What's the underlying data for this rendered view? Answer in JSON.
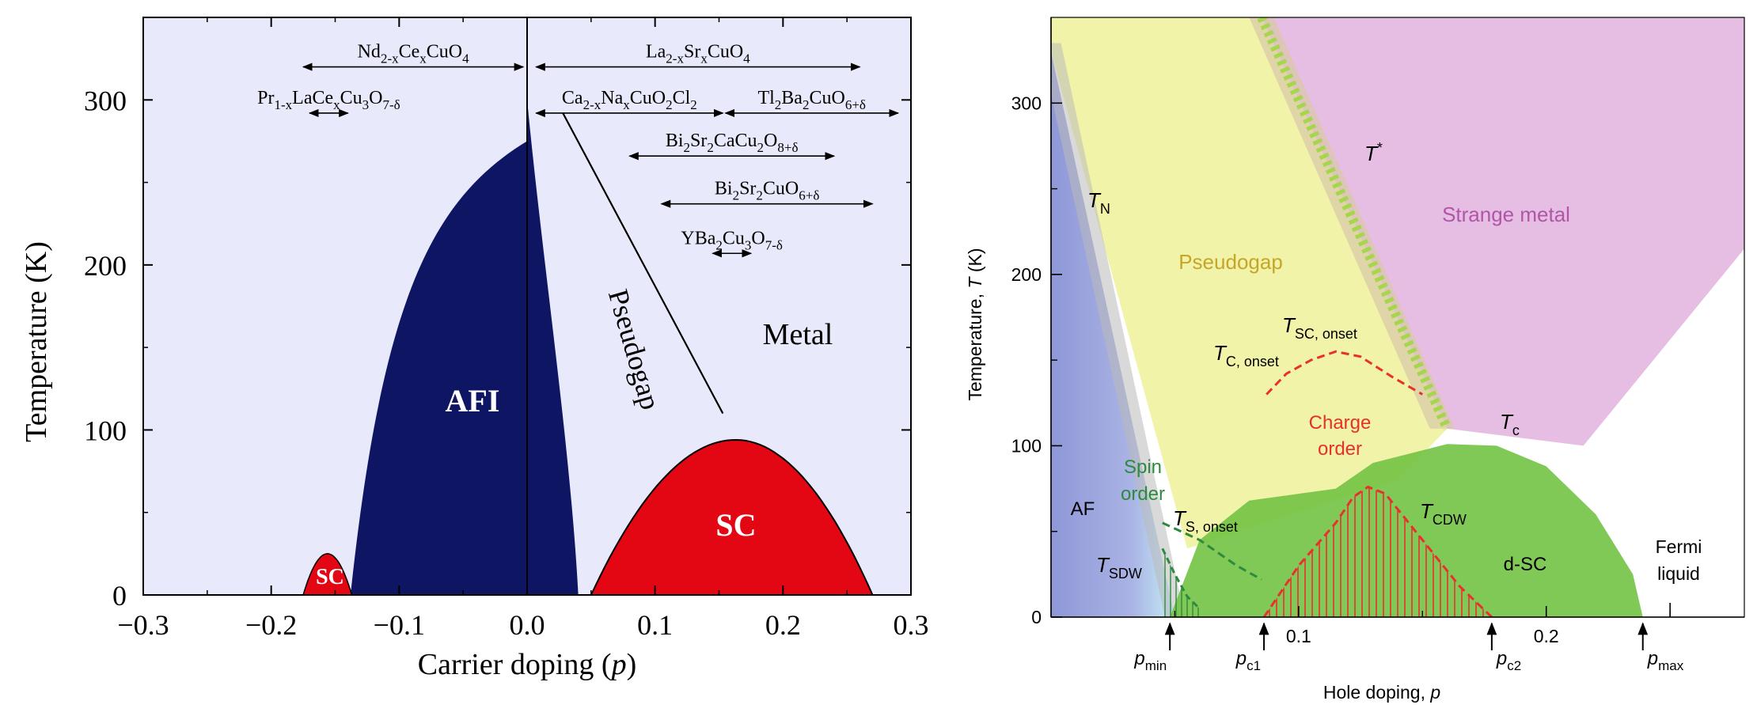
{
  "chart_data": [
    {
      "type": "area",
      "ylabel": "Temperature  (K)",
      "xlabel_main": "Carrier doping  (",
      "xlabel_var": "p",
      "xlabel_close": ")",
      "xlim": [
        -0.3,
        0.3
      ],
      "ylim": [
        0,
        350
      ],
      "x_ticks": [
        "−0.3",
        "−0.2",
        "−0.1",
        "0.0",
        "0.1",
        "0.2",
        "0.3"
      ],
      "x_tick_values": [
        -0.3,
        -0.2,
        -0.1,
        0.0,
        0.1,
        0.2,
        0.3
      ],
      "y_ticks": [
        "0",
        "100",
        "200",
        "300"
      ],
      "y_tick_values": [
        0,
        100,
        200,
        300
      ],
      "colors": {
        "background": "#e8e9fb",
        "afi": "#0e1563",
        "sc": "#e30613"
      },
      "regions": {
        "afi": {
          "label": "AFI",
          "p_left": -0.138,
          "p_right": 0.04,
          "tn_max": 275
        },
        "sc_electron": {
          "label": "SC",
          "p_range": [
            -0.175,
            -0.137
          ],
          "tc_max": 25
        },
        "sc_hole": {
          "label": "SC",
          "p_range": [
            0.05,
            0.27
          ],
          "tc_max": 94,
          "p_opt": 0.163
        },
        "pseudogap": {
          "label": "Pseudogap",
          "line": [
            [
              0.028,
              292
            ],
            [
              0.153,
              110
            ]
          ]
        },
        "metal": {
          "label": "Metal"
        }
      },
      "compounds": [
        {
          "main": "Nd",
          "parts": [
            [
              "2-x",
              "sub"
            ],
            [
              "Ce",
              ""
            ],
            [
              "x",
              "sub"
            ],
            [
              "CuO",
              ""
            ],
            [
              "4",
              "sub"
            ]
          ],
          "range": [
            -0.175,
            -0.003
          ],
          "t": 320
        },
        {
          "main": "Pr",
          "parts": [
            [
              "1-x",
              "sub"
            ],
            [
              "LaCe",
              ""
            ],
            [
              "x",
              "sub"
            ],
            [
              "Cu",
              ""
            ],
            [
              "3",
              "sub"
            ],
            [
              "O",
              ""
            ],
            [
              "7-δ",
              "sub"
            ]
          ],
          "range": [
            -0.17,
            -0.14
          ],
          "t": 292
        },
        {
          "main": "La",
          "parts": [
            [
              "2-x",
              "sub"
            ],
            [
              "Sr",
              ""
            ],
            [
              "x",
              "sub"
            ],
            [
              "CuO",
              ""
            ],
            [
              "4",
              "sub"
            ]
          ],
          "range": [
            0.007,
            0.26
          ],
          "t": 320
        },
        {
          "main": "Ca",
          "parts": [
            [
              "2-x",
              "sub"
            ],
            [
              "Na",
              ""
            ],
            [
              "x",
              "sub"
            ],
            [
              "CuO",
              ""
            ],
            [
              "2",
              "sub"
            ],
            [
              "Cl",
              ""
            ],
            [
              "2",
              "sub"
            ]
          ],
          "range": [
            0.007,
            0.153
          ],
          "t": 292
        },
        {
          "main": "Tl",
          "parts": [
            [
              "2",
              "sub"
            ],
            [
              "Ba",
              ""
            ],
            [
              "2",
              "sub"
            ],
            [
              "CuO",
              ""
            ],
            [
              "6+δ",
              "sub"
            ]
          ],
          "range": [
            0.155,
            0.29
          ],
          "t": 292
        },
        {
          "main": "Bi",
          "parts": [
            [
              "2",
              "sub"
            ],
            [
              "Sr",
              ""
            ],
            [
              "2",
              "sub"
            ],
            [
              "CaCu",
              ""
            ],
            [
              "2",
              "sub"
            ],
            [
              "O",
              ""
            ],
            [
              "8+δ",
              "sub"
            ]
          ],
          "range": [
            0.08,
            0.24
          ],
          "t": 266
        },
        {
          "main": "Bi",
          "parts": [
            [
              "2",
              "sub"
            ],
            [
              "Sr",
              ""
            ],
            [
              "2",
              "sub"
            ],
            [
              "CuO",
              ""
            ],
            [
              "6+δ",
              "sub"
            ]
          ],
          "range": [
            0.105,
            0.27
          ],
          "t": 237
        },
        {
          "main": "YBa",
          "parts": [
            [
              "2",
              "sub"
            ],
            [
              "Cu",
              ""
            ],
            [
              "3",
              "sub"
            ],
            [
              "O",
              ""
            ],
            [
              "7-δ",
              "sub"
            ]
          ],
          "range": [
            0.145,
            0.175
          ],
          "t": 207
        }
      ]
    },
    {
      "type": "area",
      "ylabel_pre": "Temperature, ",
      "ylabel_var": "T",
      "ylabel_post": " (K)",
      "xlabel_pre": "Hole doping, ",
      "xlabel_var": "p",
      "xlim": [
        0,
        0.28
      ],
      "ylim": [
        0,
        350
      ],
      "x_ticks": [
        "0.1",
        "0.2"
      ],
      "x_tick_values": [
        0.1,
        0.2
      ],
      "y_ticks": [
        "0",
        "100",
        "200",
        "300"
      ],
      "y_tick_values": [
        0,
        100,
        200,
        300
      ],
      "colors": {
        "af": "#9fa7dd",
        "pseudogap": "#f0f29e",
        "strange_metal": "#e3b3de",
        "dsc": "#6fc140",
        "charge_order": "#e8312d",
        "spin_order": "#2d8a3e",
        "tstar": "#a6d64e",
        "label_pseudogap": "#c6a62a",
        "label_strange": "#b055a8"
      },
      "labels": {
        "af": "AF",
        "pseudogap": "Pseudogap",
        "strange_metal": "Strange metal",
        "spin_order_line1": "Spin",
        "spin_order_line2": "order",
        "charge_order_line1": "Charge",
        "charge_order_line2": "order",
        "dsc": "d-SC",
        "fermi_line1": "Fermi",
        "fermi_line2": "liquid",
        "tn": {
          "var": "T",
          "sub": "N"
        },
        "tstar": {
          "var": "T",
          "sup": "*"
        },
        "tc": {
          "var": "T",
          "sub": "c"
        },
        "tc_onset": {
          "var": "T",
          "sub": "C, onset"
        },
        "tsc_onset": {
          "var": "T",
          "sub": "SC, onset"
        },
        "ts_onset": {
          "var": "T",
          "sub": "S, onset"
        },
        "tcdw": {
          "var": "T",
          "sub": "CDW"
        },
        "tsdw": {
          "var": "T",
          "sub": "SDW"
        }
      },
      "markers": [
        {
          "var": "p",
          "sub": "min",
          "p": 0.048
        },
        {
          "var": "p",
          "sub": "c1",
          "p": 0.086
        },
        {
          "var": "p",
          "sub": "c2",
          "p": 0.178
        },
        {
          "var": "p",
          "sub": "max",
          "p": 0.239
        }
      ],
      "curves": {
        "tc_dome": [
          [
            0.048,
            0
          ],
          [
            0.06,
            45
          ],
          [
            0.08,
            68
          ],
          [
            0.1,
            72
          ],
          [
            0.115,
            75
          ],
          [
            0.13,
            90
          ],
          [
            0.16,
            101
          ],
          [
            0.18,
            100
          ],
          [
            0.2,
            88
          ],
          [
            0.22,
            60
          ],
          [
            0.235,
            25
          ],
          [
            0.239,
            0
          ]
        ],
        "tcdw": [
          [
            0.086,
            0
          ],
          [
            0.1,
            30
          ],
          [
            0.115,
            55
          ],
          [
            0.122,
            70
          ],
          [
            0.128,
            76
          ],
          [
            0.135,
            72
          ],
          [
            0.15,
            45
          ],
          [
            0.165,
            18
          ],
          [
            0.178,
            0
          ]
        ],
        "tc_onset": [
          [
            0.087,
            130
          ],
          [
            0.095,
            142
          ],
          [
            0.105,
            150
          ],
          [
            0.115,
            155
          ],
          [
            0.125,
            152
          ],
          [
            0.138,
            140
          ],
          [
            0.15,
            130
          ]
        ],
        "ts_onset": [
          [
            0.045,
            55
          ],
          [
            0.06,
            45
          ],
          [
            0.075,
            30
          ],
          [
            0.085,
            22
          ]
        ],
        "tsdw": [
          [
            0.045,
            40
          ],
          [
            0.05,
            25
          ],
          [
            0.055,
            12
          ],
          [
            0.06,
            5
          ]
        ],
        "tstar": [
          [
            0.085,
            350
          ],
          [
            0.16,
            110
          ]
        ]
      }
    }
  ]
}
